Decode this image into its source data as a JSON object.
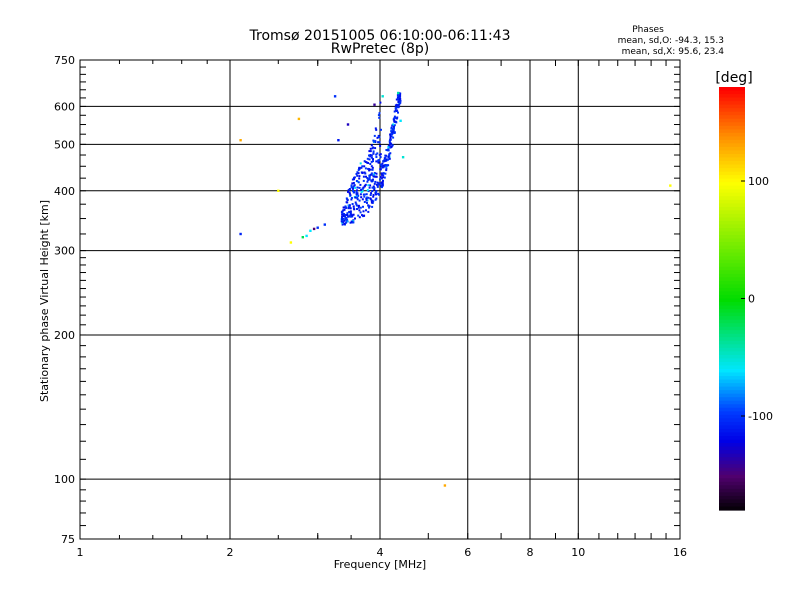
{
  "chart_data": {
    "type": "scatter",
    "title": "Tromsø 20151005 06:10:00-06:11:43",
    "subtitle": "RwPretec (8p)",
    "stats": {
      "heading": "Phases",
      "line1": "mean, sd,O: -94.3, 15.3",
      "line2": "mean, sd,X:  95.6, 23.4"
    },
    "xlabel": "Frequency [MHz]",
    "ylabel": "Stationary phase Virtual Height [km]",
    "x_scale": "log",
    "y_scale": "log",
    "xlim": [
      1,
      16
    ],
    "ylim": [
      75,
      750
    ],
    "x_ticks": [
      {
        "v": 1,
        "label": "1"
      },
      {
        "v": 2,
        "label": "2"
      },
      {
        "v": 4,
        "label": "4"
      },
      {
        "v": 6,
        "label": "6"
      },
      {
        "v": 8,
        "label": "8"
      },
      {
        "v": 10,
        "label": "10"
      },
      {
        "v": 16,
        "label": "16"
      }
    ],
    "y_ticks": [
      {
        "v": 75,
        "label": "75"
      },
      {
        "v": 100,
        "label": "100"
      },
      {
        "v": 200,
        "label": "200"
      },
      {
        "v": 300,
        "label": "300"
      },
      {
        "v": 400,
        "label": "400"
      },
      {
        "v": 500,
        "label": "500"
      },
      {
        "v": 600,
        "label": "600"
      },
      {
        "v": 750,
        "label": "750"
      }
    ],
    "grid": true,
    "colorbar": {
      "title": "[deg]",
      "range": [
        -180,
        180
      ],
      "ticks": [
        {
          "v": 100,
          "label": "100"
        },
        {
          "v": 0,
          "label": "0"
        },
        {
          "v": -100,
          "label": "-100"
        }
      ]
    },
    "trace": {
      "description_color": "#1030ff",
      "lower_edge": [
        [
          3.4,
          340
        ],
        [
          3.6,
          345
        ],
        [
          3.75,
          355
        ],
        [
          3.85,
          368
        ],
        [
          3.95,
          385
        ],
        [
          4.05,
          410
        ],
        [
          4.15,
          450
        ],
        [
          4.25,
          500
        ],
        [
          4.32,
          560
        ],
        [
          4.38,
          610
        ]
      ],
      "upper_edge": [
        [
          3.35,
          360
        ],
        [
          3.45,
          400
        ],
        [
          3.55,
          430
        ],
        [
          3.65,
          455
        ],
        [
          3.75,
          470
        ],
        [
          3.85,
          500
        ],
        [
          3.92,
          540
        ],
        [
          3.98,
          590
        ],
        [
          4.02,
          625
        ]
      ]
    },
    "points": [
      {
        "x": 2.1,
        "y": 325,
        "phase": -105
      },
      {
        "x": 2.1,
        "y": 510,
        "phase": 130
      },
      {
        "x": 2.5,
        "y": 400,
        "phase": 100
      },
      {
        "x": 2.75,
        "y": 565,
        "phase": 125
      },
      {
        "x": 2.65,
        "y": 312,
        "phase": 100
      },
      {
        "x": 2.8,
        "y": 320,
        "phase": -20
      },
      {
        "x": 2.85,
        "y": 322,
        "phase": -60
      },
      {
        "x": 2.9,
        "y": 330,
        "phase": -60
      },
      {
        "x": 2.95,
        "y": 333,
        "phase": -150
      },
      {
        "x": 3.0,
        "y": 335,
        "phase": -100
      },
      {
        "x": 3.1,
        "y": 340,
        "phase": -100
      },
      {
        "x": 3.25,
        "y": 630,
        "phase": -100
      },
      {
        "x": 3.45,
        "y": 550,
        "phase": -130
      },
      {
        "x": 3.3,
        "y": 510,
        "phase": -110
      },
      {
        "x": 3.9,
        "y": 605,
        "phase": -140
      },
      {
        "x": 4.05,
        "y": 630,
        "phase": -50
      },
      {
        "x": 4.35,
        "y": 640,
        "phase": -40
      },
      {
        "x": 4.4,
        "y": 560,
        "phase": -60
      },
      {
        "x": 4.45,
        "y": 470,
        "phase": -50
      },
      {
        "x": 5.4,
        "y": 97,
        "phase": 130
      },
      {
        "x": 15.3,
        "y": 410,
        "phase": 100
      }
    ]
  }
}
